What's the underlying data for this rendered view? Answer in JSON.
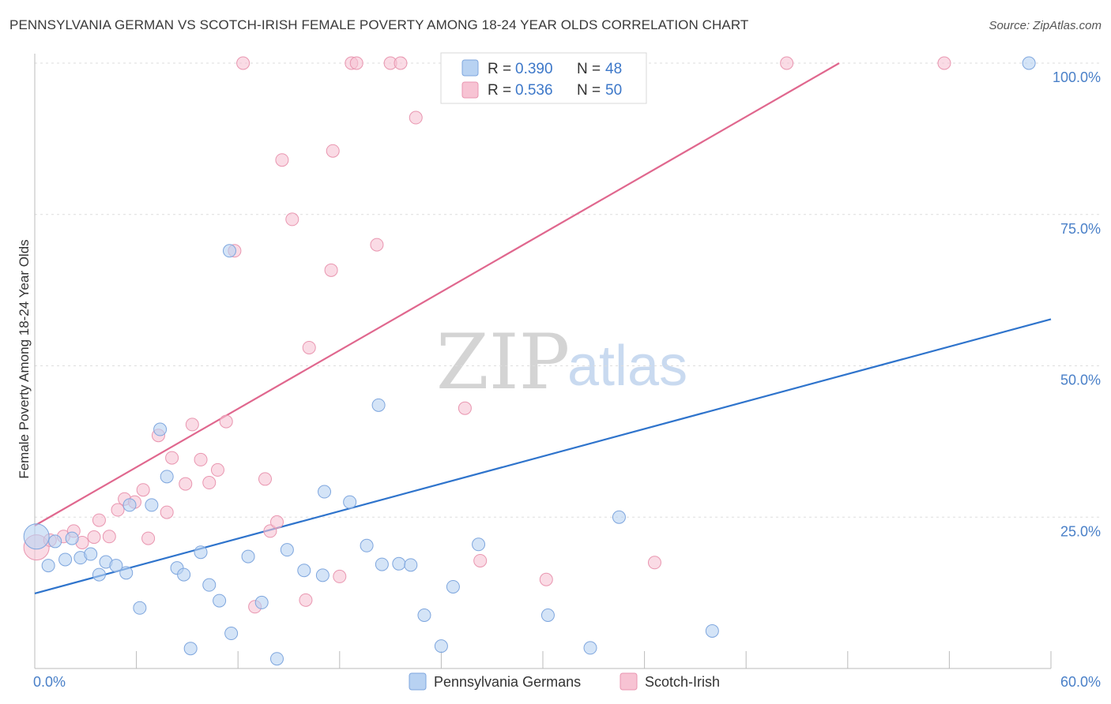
{
  "title": "PENNSYLVANIA GERMAN VS SCOTCH-IRISH FEMALE POVERTY AMONG 18-24 YEAR OLDS CORRELATION CHART",
  "source": "Source: ZipAtlas.com",
  "watermark": {
    "zip": "ZIP",
    "atlas": "atlas"
  },
  "legend": {
    "rows": [
      {
        "r_label": "R =",
        "r_value": "0.390",
        "n_label": "N =",
        "n_value": "48"
      },
      {
        "r_label": "R =",
        "r_value": "0.536",
        "n_label": "N =",
        "n_value": "50"
      }
    ],
    "bottom": [
      "Pennsylvania Germans",
      "Scotch-Irish"
    ]
  },
  "colors": {
    "blue_fill": "#b8d2f2",
    "blue_stroke": "#7ea6de",
    "blue_line": "#2f74cc",
    "pink_fill": "#f7c3d3",
    "pink_stroke": "#e996b0",
    "pink_line": "#e0678e",
    "accent_text": "#3d78c9",
    "grid": "#dddddd"
  },
  "chart_data": {
    "type": "scatter",
    "title": "PENNSYLVANIA GERMAN VS SCOTCH-IRISH FEMALE POVERTY AMONG 18-24 YEAR OLDS CORRELATION CHART",
    "xlabel": "",
    "ylabel": "Female Poverty Among 18-24 Year Olds",
    "xlim": [
      0,
      60
    ],
    "ylim": [
      0,
      100
    ],
    "x_ticks": [
      "0.0%",
      "60.0%"
    ],
    "y_ticks": [
      {
        "value": 25,
        "label": "25.0%"
      },
      {
        "value": 50,
        "label": "50.0%"
      },
      {
        "value": 75,
        "label": "75.0%"
      },
      {
        "value": 100,
        "label": "100.0%"
      }
    ],
    "grid": "horizontal-dashed",
    "legend_position": "top-center",
    "series": [
      {
        "name": "Pennsylvania Germans",
        "color": "#2f74cc",
        "trend": {
          "x": [
            0,
            60
          ],
          "y": [
            12.4,
            57.7
          ]
        },
        "points": [
          {
            "x": 0.1,
            "y": 21.8,
            "big": true
          },
          {
            "x": 0.8,
            "y": 17.0
          },
          {
            "x": 1.2,
            "y": 21.0
          },
          {
            "x": 1.8,
            "y": 18.0
          },
          {
            "x": 2.2,
            "y": 21.5
          },
          {
            "x": 2.7,
            "y": 18.3
          },
          {
            "x": 3.3,
            "y": 18.9
          },
          {
            "x": 3.8,
            "y": 15.5
          },
          {
            "x": 4.2,
            "y": 17.6
          },
          {
            "x": 4.8,
            "y": 17.0
          },
          {
            "x": 5.4,
            "y": 15.8
          },
          {
            "x": 5.6,
            "y": 27.0
          },
          {
            "x": 6.2,
            "y": 10.0
          },
          {
            "x": 6.9,
            "y": 27.0
          },
          {
            "x": 7.4,
            "y": 39.5
          },
          {
            "x": 7.8,
            "y": 31.7
          },
          {
            "x": 8.4,
            "y": 16.6
          },
          {
            "x": 8.8,
            "y": 15.5
          },
          {
            "x": 9.2,
            "y": 3.3
          },
          {
            "x": 9.8,
            "y": 19.2
          },
          {
            "x": 10.3,
            "y": 13.8
          },
          {
            "x": 10.9,
            "y": 11.2
          },
          {
            "x": 11.6,
            "y": 5.8
          },
          {
            "x": 11.5,
            "y": 69.0
          },
          {
            "x": 12.6,
            "y": 18.5
          },
          {
            "x": 13.4,
            "y": 10.9
          },
          {
            "x": 14.3,
            "y": 1.6
          },
          {
            "x": 14.9,
            "y": 19.6
          },
          {
            "x": 15.9,
            "y": 16.2
          },
          {
            "x": 17.0,
            "y": 15.4
          },
          {
            "x": 17.1,
            "y": 29.2
          },
          {
            "x": 18.6,
            "y": 27.5
          },
          {
            "x": 19.6,
            "y": 20.3
          },
          {
            "x": 20.5,
            "y": 17.2
          },
          {
            "x": 20.3,
            "y": 43.5
          },
          {
            "x": 21.5,
            "y": 17.3
          },
          {
            "x": 22.2,
            "y": 17.1
          },
          {
            "x": 23.0,
            "y": 8.8
          },
          {
            "x": 24.0,
            "y": 3.7
          },
          {
            "x": 24.7,
            "y": 13.5
          },
          {
            "x": 26.2,
            "y": 20.5
          },
          {
            "x": 26.0,
            "y": 100.0
          },
          {
            "x": 30.3,
            "y": 8.8
          },
          {
            "x": 30.5,
            "y": 100.0
          },
          {
            "x": 32.8,
            "y": 3.4
          },
          {
            "x": 34.5,
            "y": 25.0
          },
          {
            "x": 40.0,
            "y": 6.2
          },
          {
            "x": 58.7,
            "y": 100.0
          }
        ]
      },
      {
        "name": "Scotch-Irish",
        "color": "#e0678e",
        "trend": {
          "x": [
            0,
            47.5
          ],
          "y": [
            23.6,
            100.0
          ]
        },
        "points": [
          {
            "x": 0.1,
            "y": 20.0,
            "big": true
          },
          {
            "x": 0.9,
            "y": 21.2
          },
          {
            "x": 1.7,
            "y": 21.8
          },
          {
            "x": 2.3,
            "y": 22.7
          },
          {
            "x": 2.8,
            "y": 20.8
          },
          {
            "x": 3.5,
            "y": 21.7
          },
          {
            "x": 3.8,
            "y": 24.5
          },
          {
            "x": 4.4,
            "y": 21.8
          },
          {
            "x": 4.9,
            "y": 26.2
          },
          {
            "x": 5.3,
            "y": 28.0
          },
          {
            "x": 5.9,
            "y": 27.5
          },
          {
            "x": 6.4,
            "y": 29.5
          },
          {
            "x": 6.7,
            "y": 21.5
          },
          {
            "x": 7.3,
            "y": 38.5
          },
          {
            "x": 7.8,
            "y": 25.8
          },
          {
            "x": 8.1,
            "y": 34.8
          },
          {
            "x": 8.9,
            "y": 30.5
          },
          {
            "x": 9.3,
            "y": 40.3
          },
          {
            "x": 9.8,
            "y": 34.5
          },
          {
            "x": 10.3,
            "y": 30.7
          },
          {
            "x": 10.8,
            "y": 32.8
          },
          {
            "x": 11.3,
            "y": 40.8
          },
          {
            "x": 11.8,
            "y": 69.0
          },
          {
            "x": 12.3,
            "y": 100.0
          },
          {
            "x": 13.0,
            "y": 10.2
          },
          {
            "x": 13.6,
            "y": 31.3
          },
          {
            "x": 13.9,
            "y": 22.7
          },
          {
            "x": 14.3,
            "y": 24.2
          },
          {
            "x": 14.6,
            "y": 84.0
          },
          {
            "x": 15.2,
            "y": 74.2
          },
          {
            "x": 16.0,
            "y": 11.3
          },
          {
            "x": 16.2,
            "y": 53.0
          },
          {
            "x": 17.5,
            "y": 65.8
          },
          {
            "x": 17.6,
            "y": 85.5
          },
          {
            "x": 18.0,
            "y": 15.2
          },
          {
            "x": 18.7,
            "y": 100.0
          },
          {
            "x": 19.0,
            "y": 100.0
          },
          {
            "x": 20.2,
            "y": 70.0
          },
          {
            "x": 21.0,
            "y": 100.0
          },
          {
            "x": 21.6,
            "y": 100.0
          },
          {
            "x": 22.5,
            "y": 91.0
          },
          {
            "x": 25.4,
            "y": 43.0
          },
          {
            "x": 26.3,
            "y": 17.8
          },
          {
            "x": 27.0,
            "y": 100.0
          },
          {
            "x": 28.3,
            "y": 100.0
          },
          {
            "x": 30.2,
            "y": 14.7
          },
          {
            "x": 31.0,
            "y": 100.0
          },
          {
            "x": 36.6,
            "y": 17.5
          },
          {
            "x": 44.4,
            "y": 100.0
          },
          {
            "x": 53.7,
            "y": 100.0
          }
        ]
      }
    ]
  }
}
